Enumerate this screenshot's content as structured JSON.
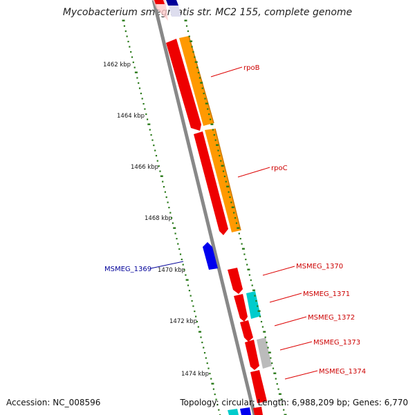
{
  "title": "Mycobacterium smegmatis str. MC2 155, complete genome",
  "footer": {
    "accession": "Accession: NC_008596",
    "summary": "Topology: circular; Length: 6,988,209 bp; Genes: 6,770"
  },
  "scale": {
    "ticks": [
      {
        "label": "1462 kbp"
      },
      {
        "label": "1464 kbp"
      },
      {
        "label": "1466 kbp"
      },
      {
        "label": "1468 kbp"
      },
      {
        "label": "1470 kbp"
      },
      {
        "label": "1472 kbp"
      },
      {
        "label": "1474 kbp"
      }
    ]
  },
  "genes": [
    {
      "name": "rpoB",
      "color": "#cc0000"
    },
    {
      "name": "rpoC",
      "color": "#cc0000"
    },
    {
      "name": "MSMEG_1369",
      "color": "#000099"
    },
    {
      "name": "MSMEG_1370",
      "color": "#cc0000"
    },
    {
      "name": "MSMEG_1371",
      "color": "#cc0000"
    },
    {
      "name": "MSMEG_1372",
      "color": "#cc0000"
    },
    {
      "name": "MSMEG_1373",
      "color": "#cc0000"
    },
    {
      "name": "MSMEG_1374",
      "color": "#cc0000"
    }
  ],
  "colors": {
    "backbone": "#888888",
    "tick": "#2a7a1a",
    "cds": "#ee0000",
    "gene_orange": "#ff9900",
    "gene_blue": "#0000ee",
    "gene_cyan": "#00cccc",
    "gene_gray": "#bbbbbb"
  }
}
